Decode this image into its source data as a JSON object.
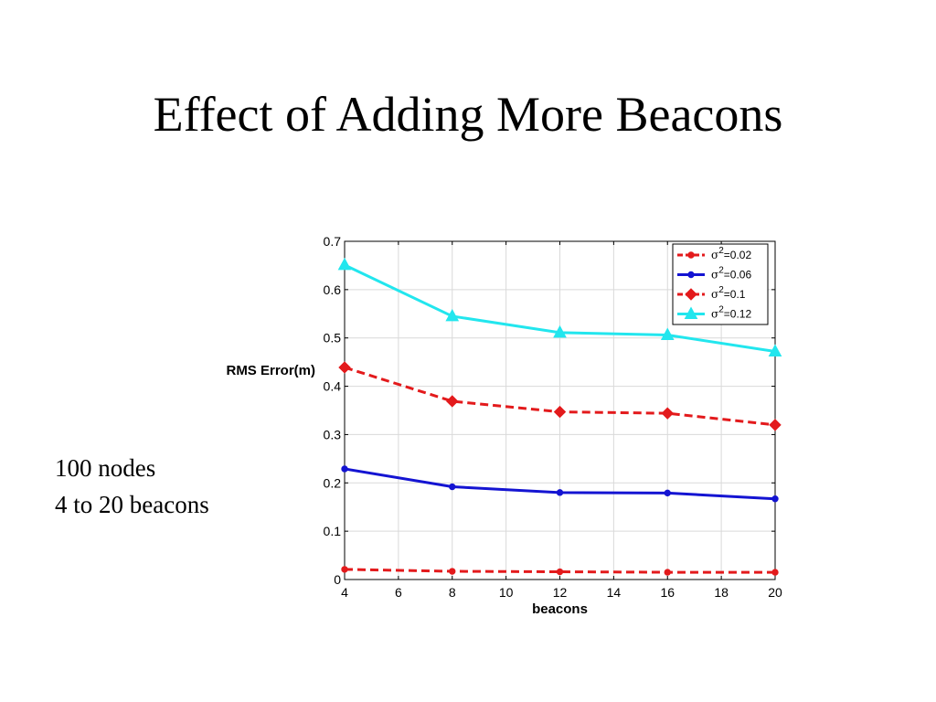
{
  "slide": {
    "title": "Effect of Adding More Beacons",
    "notes": [
      "100 nodes",
      "4 to 20 beacons"
    ]
  },
  "chart_data": {
    "type": "line",
    "title": "",
    "xlabel": "beacons",
    "ylabel": "RMS Error(m)",
    "xlim": [
      4,
      20
    ],
    "ylim": [
      0,
      0.7
    ],
    "x_ticks": [
      4,
      6,
      8,
      10,
      12,
      14,
      16,
      18,
      20
    ],
    "y_ticks": [
      0,
      0.1,
      0.2,
      0.3,
      0.4,
      0.5,
      0.6,
      0.7
    ],
    "x": [
      4,
      8,
      12,
      16,
      20
    ],
    "grid": true,
    "legend_position": "top-right",
    "series": [
      {
        "sigma": "2",
        "value_text": "=0.02",
        "color": "#e31a1c",
        "dash": "dashed",
        "marker": "point",
        "values": [
          0.021,
          0.017,
          0.016,
          0.015,
          0.015
        ]
      },
      {
        "sigma": "2",
        "value_text": "=0.06",
        "color": "#1414d2",
        "dash": "solid",
        "marker": "point",
        "values": [
          0.229,
          0.192,
          0.18,
          0.179,
          0.167
        ]
      },
      {
        "sigma": "2",
        "value_text": "=0.1",
        "color": "#e31a1c",
        "dash": "dashed",
        "marker": "diamond",
        "values": [
          0.439,
          0.369,
          0.347,
          0.344,
          0.32
        ]
      },
      {
        "sigma": "2",
        "value_text": "=0.12",
        "color": "#22e6ee",
        "dash": "solid",
        "marker": "triangle",
        "values": [
          0.651,
          0.545,
          0.511,
          0.506,
          0.472
        ]
      }
    ]
  }
}
